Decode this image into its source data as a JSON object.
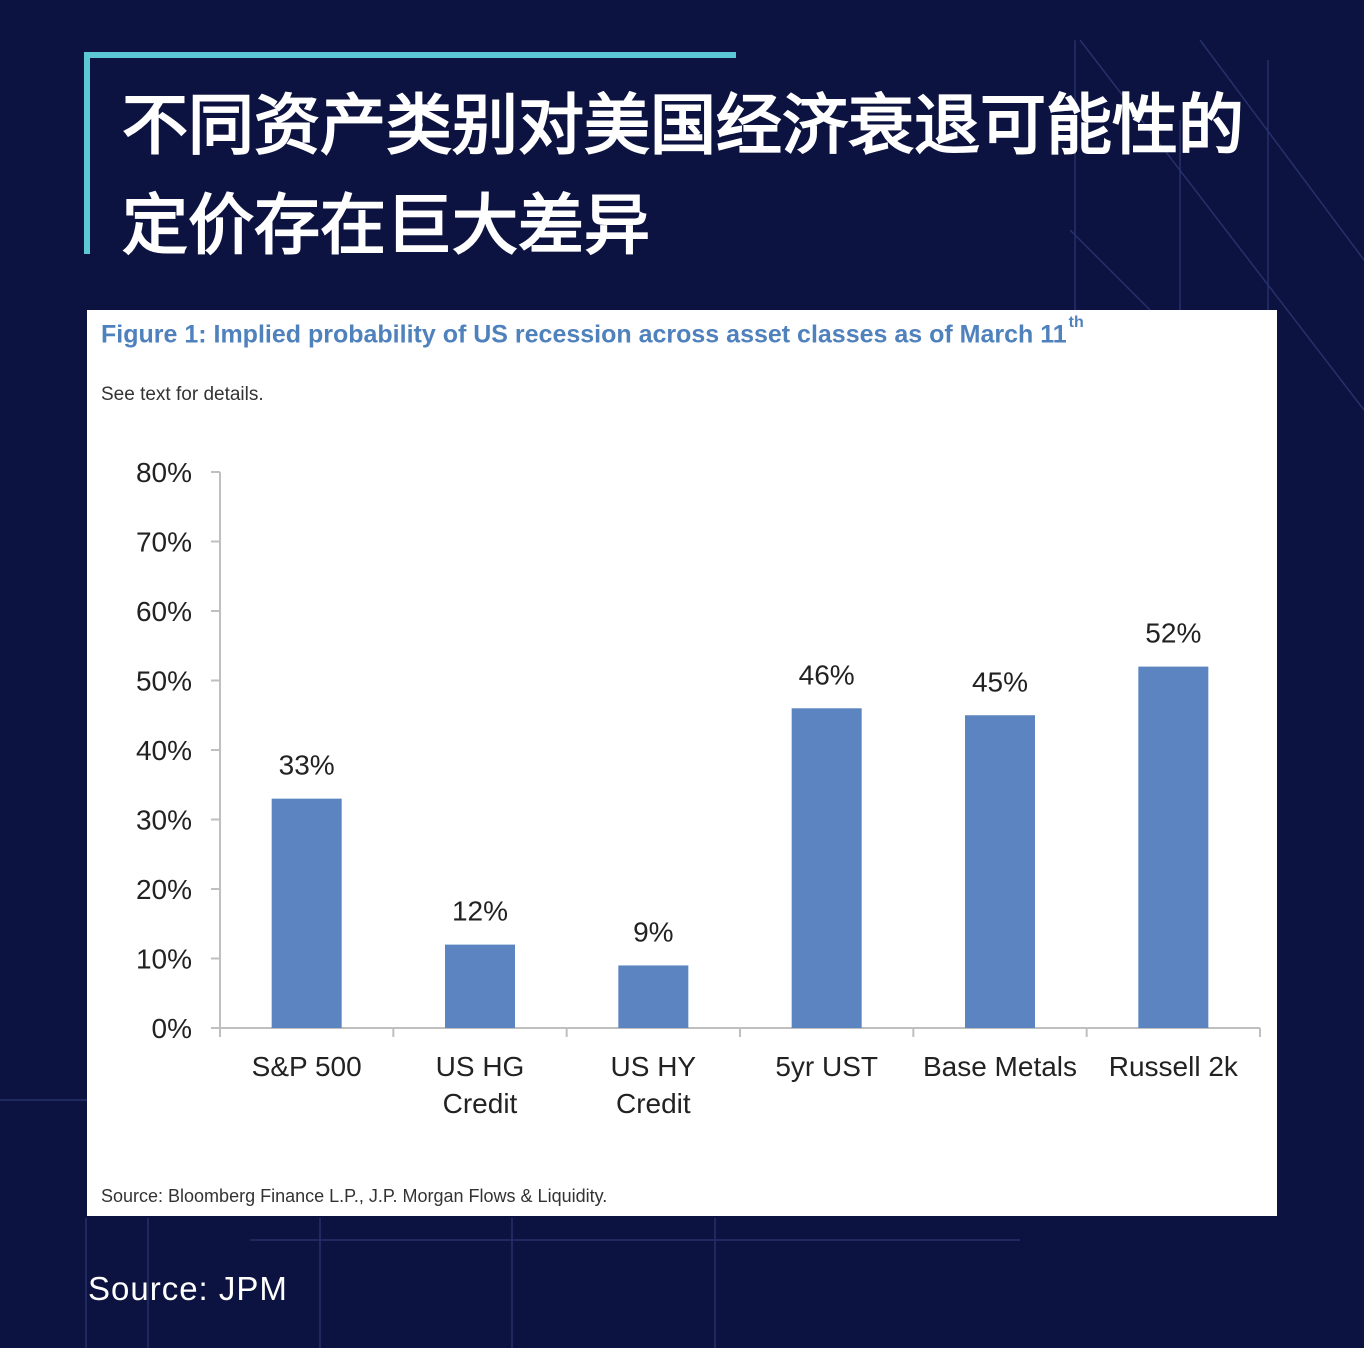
{
  "headline": {
    "line1": "不同资产类别对美国经济衰退可能性的",
    "line2": "定价存在巨大差异"
  },
  "figure": {
    "title": "Figure 1: Implied probability of US recession across asset classes as of March 11",
    "title_sup": "th",
    "subtitle": "See text for details.",
    "source": "Source: Bloomberg Finance L.P., J.P. Morgan Flows & Liquidity."
  },
  "page_source": "Source: JPM",
  "colors": {
    "background": "#0d1340",
    "accent": "#5cc8d6",
    "bar": "#5b84c0",
    "title": "#4f81bd"
  },
  "chart_data": {
    "type": "bar",
    "categories": [
      [
        "S&P 500"
      ],
      [
        "US HG",
        "Credit"
      ],
      [
        "US HY",
        "Credit"
      ],
      [
        "5yr UST"
      ],
      [
        "Base Metals"
      ],
      [
        "Russell 2k"
      ]
    ],
    "values": [
      33,
      12,
      9,
      46,
      45,
      52
    ],
    "data_labels": [
      "33%",
      "12%",
      "9%",
      "46%",
      "45%",
      "52%"
    ],
    "yticks": [
      "0%",
      "10%",
      "20%",
      "30%",
      "40%",
      "50%",
      "60%",
      "70%",
      "80%"
    ],
    "ylim": [
      0,
      80
    ],
    "grid": false,
    "legend": "none"
  }
}
